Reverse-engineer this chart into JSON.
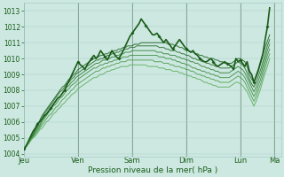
{
  "xlabel": "Pression niveau de la mer( hPa )",
  "ylim": [
    1003.8,
    1013.5
  ],
  "xlim": [
    0,
    114
  ],
  "background_color": "#cce8e0",
  "grid_color_major": "#aacccc",
  "grid_color_minor": "#bbdddd",
  "text_color": "#1a5c1a",
  "day_labels": [
    "Jeu",
    "Ven",
    "Sam",
    "Dim",
    "Lun",
    "Ma"
  ],
  "day_positions": [
    0,
    24,
    48,
    72,
    96,
    111
  ],
  "yticks": [
    1004,
    1005,
    1006,
    1007,
    1008,
    1009,
    1010,
    1011,
    1012,
    1013
  ],
  "obs_color": "#1a5c1a",
  "forecast_colors": [
    "#1a5c1a",
    "#246824",
    "#2e7d2e",
    "#3a8a3a",
    "#4a9a4a",
    "#5aaa5a",
    "#6aba6a"
  ],
  "obs_line": [
    1004.3,
    1004.5,
    1004.8,
    1005.1,
    1005.4,
    1005.6,
    1005.9,
    1006.0,
    1006.2,
    1006.4,
    1006.5,
    1006.7,
    1006.9,
    1007.1,
    1007.3,
    1007.5,
    1007.6,
    1007.8,
    1008.0,
    1008.3,
    1008.6,
    1008.9,
    1009.2,
    1009.5,
    1009.8,
    1009.6,
    1009.5,
    1009.3,
    1009.6,
    1009.8,
    1010.0,
    1010.2,
    1010.0,
    1010.2,
    1010.5,
    1010.3,
    1010.1,
    1009.9,
    1010.2,
    1010.5,
    1010.3,
    1010.1,
    1010.0,
    1010.2,
    1010.5,
    1010.8,
    1011.1,
    1011.4,
    1011.6,
    1011.8,
    1012.0,
    1012.2,
    1012.5,
    1012.3,
    1012.1,
    1011.9,
    1011.7,
    1011.5,
    1011.5,
    1011.6,
    1011.4,
    1011.2,
    1011.0,
    1011.2,
    1011.0,
    1010.8,
    1010.6,
    1010.8,
    1011.0,
    1011.2,
    1011.0,
    1010.8,
    1010.6,
    1010.5,
    1010.4,
    1010.5,
    1010.3,
    1010.2,
    1010.0,
    1009.9,
    1009.8,
    1009.8,
    1009.9,
    1010.0,
    1009.8,
    1009.6,
    1009.5,
    1009.6,
    1009.7,
    1009.8,
    1009.7,
    1009.6,
    1009.5,
    1009.3,
    1010.0,
    1009.8,
    1009.9,
    1009.7,
    1009.5,
    1009.8,
    1009.2,
    1009.0,
    1008.5,
    1008.9,
    1009.3,
    1009.8,
    1010.3,
    1011.2,
    1012.0,
    1013.2
  ],
  "forecast_lines": [
    [
      1004.3,
      1004.5,
      1004.7,
      1005.0,
      1005.2,
      1005.5,
      1005.8,
      1006.1,
      1006.4,
      1006.6,
      1006.8,
      1007.0,
      1007.2,
      1007.4,
      1007.6,
      1007.8,
      1008.0,
      1008.2,
      1008.3,
      1008.5,
      1008.7,
      1008.8,
      1009.0,
      1009.1,
      1009.3,
      1009.4,
      1009.5,
      1009.6,
      1009.7,
      1009.8,
      1009.9,
      1010.0,
      1010.0,
      1010.1,
      1010.2,
      1010.2,
      1010.3,
      1010.3,
      1010.4,
      1010.4,
      1010.5,
      1010.5,
      1010.6,
      1010.6,
      1010.7,
      1010.7,
      1010.8,
      1010.8,
      1010.8,
      1010.9,
      1010.9,
      1010.9,
      1011.0,
      1011.0,
      1011.0,
      1011.0,
      1011.0,
      1011.0,
      1011.0,
      1011.0,
      1011.0,
      1011.0,
      1011.0,
      1011.0,
      1010.9,
      1010.9,
      1010.9,
      1010.8,
      1010.8,
      1010.7,
      1010.7,
      1010.6,
      1010.5,
      1010.5,
      1010.4,
      1010.4,
      1010.3,
      1010.3,
      1010.2,
      1010.2,
      1010.1,
      1010.1,
      1010.0,
      1010.0,
      1010.0,
      1009.9,
      1009.9,
      1009.8,
      1009.8,
      1009.7,
      1009.7,
      1009.7,
      1009.7,
      1009.8,
      1009.9,
      1010.0,
      1010.0,
      1009.9,
      1009.8,
      1009.5,
      1009.0,
      1008.7,
      1008.5,
      1008.8,
      1009.2,
      1009.7,
      1010.2,
      1010.7,
      1011.1,
      1011.5
    ],
    [
      1004.3,
      1004.5,
      1004.7,
      1005.0,
      1005.2,
      1005.5,
      1005.7,
      1006.0,
      1006.2,
      1006.5,
      1006.7,
      1006.9,
      1007.1,
      1007.3,
      1007.5,
      1007.7,
      1007.9,
      1008.0,
      1008.2,
      1008.4,
      1008.5,
      1008.7,
      1008.8,
      1009.0,
      1009.1,
      1009.2,
      1009.3,
      1009.4,
      1009.5,
      1009.6,
      1009.7,
      1009.8,
      1009.9,
      1009.9,
      1010.0,
      1010.0,
      1010.1,
      1010.2,
      1010.2,
      1010.3,
      1010.3,
      1010.4,
      1010.4,
      1010.5,
      1010.5,
      1010.6,
      1010.6,
      1010.7,
      1010.7,
      1010.7,
      1010.8,
      1010.8,
      1010.8,
      1010.8,
      1010.8,
      1010.8,
      1010.8,
      1010.8,
      1010.8,
      1010.8,
      1010.7,
      1010.7,
      1010.7,
      1010.6,
      1010.6,
      1010.5,
      1010.5,
      1010.5,
      1010.4,
      1010.4,
      1010.3,
      1010.3,
      1010.2,
      1010.2,
      1010.1,
      1010.0,
      1010.0,
      1009.9,
      1009.9,
      1009.8,
      1009.8,
      1009.7,
      1009.7,
      1009.6,
      1009.6,
      1009.5,
      1009.5,
      1009.4,
      1009.4,
      1009.4,
      1009.4,
      1009.4,
      1009.5,
      1009.6,
      1009.7,
      1009.8,
      1009.7,
      1009.6,
      1009.4,
      1009.1,
      1008.7,
      1008.4,
      1008.2,
      1008.5,
      1008.9,
      1009.3,
      1009.8,
      1010.3,
      1010.8,
      1011.2
    ],
    [
      1004.3,
      1004.5,
      1004.7,
      1004.9,
      1005.1,
      1005.4,
      1005.6,
      1005.8,
      1006.1,
      1006.3,
      1006.5,
      1006.7,
      1006.9,
      1007.1,
      1007.3,
      1007.5,
      1007.6,
      1007.8,
      1008.0,
      1008.2,
      1008.3,
      1008.5,
      1008.6,
      1008.8,
      1008.9,
      1009.0,
      1009.1,
      1009.2,
      1009.3,
      1009.4,
      1009.5,
      1009.6,
      1009.7,
      1009.7,
      1009.8,
      1009.9,
      1009.9,
      1010.0,
      1010.0,
      1010.1,
      1010.1,
      1010.2,
      1010.2,
      1010.3,
      1010.3,
      1010.4,
      1010.4,
      1010.4,
      1010.5,
      1010.5,
      1010.5,
      1010.5,
      1010.5,
      1010.5,
      1010.5,
      1010.5,
      1010.5,
      1010.5,
      1010.5,
      1010.4,
      1010.4,
      1010.4,
      1010.3,
      1010.3,
      1010.3,
      1010.2,
      1010.2,
      1010.2,
      1010.1,
      1010.1,
      1010.0,
      1010.0,
      1009.9,
      1009.9,
      1009.8,
      1009.8,
      1009.7,
      1009.7,
      1009.6,
      1009.5,
      1009.5,
      1009.4,
      1009.4,
      1009.3,
      1009.3,
      1009.2,
      1009.2,
      1009.1,
      1009.1,
      1009.1,
      1009.1,
      1009.1,
      1009.2,
      1009.3,
      1009.4,
      1009.5,
      1009.4,
      1009.3,
      1009.1,
      1008.8,
      1008.5,
      1008.2,
      1007.9,
      1008.2,
      1008.6,
      1009.0,
      1009.5,
      1010.0,
      1010.5,
      1010.9
    ],
    [
      1004.3,
      1004.5,
      1004.7,
      1004.9,
      1005.1,
      1005.3,
      1005.5,
      1005.7,
      1006.0,
      1006.2,
      1006.4,
      1006.6,
      1006.8,
      1007.0,
      1007.1,
      1007.3,
      1007.5,
      1007.6,
      1007.8,
      1008.0,
      1008.1,
      1008.3,
      1008.4,
      1008.5,
      1008.7,
      1008.8,
      1008.9,
      1009.0,
      1009.1,
      1009.2,
      1009.3,
      1009.4,
      1009.4,
      1009.5,
      1009.6,
      1009.6,
      1009.7,
      1009.7,
      1009.8,
      1009.8,
      1009.9,
      1009.9,
      1010.0,
      1010.0,
      1010.1,
      1010.1,
      1010.1,
      1010.2,
      1010.2,
      1010.2,
      1010.2,
      1010.2,
      1010.2,
      1010.2,
      1010.2,
      1010.2,
      1010.2,
      1010.2,
      1010.2,
      1010.2,
      1010.1,
      1010.1,
      1010.1,
      1010.0,
      1010.0,
      1010.0,
      1009.9,
      1009.9,
      1009.8,
      1009.8,
      1009.7,
      1009.7,
      1009.6,
      1009.6,
      1009.5,
      1009.4,
      1009.4,
      1009.3,
      1009.3,
      1009.2,
      1009.2,
      1009.1,
      1009.1,
      1009.0,
      1009.0,
      1008.9,
      1008.9,
      1008.8,
      1008.8,
      1008.8,
      1008.8,
      1008.8,
      1008.9,
      1009.0,
      1009.1,
      1009.2,
      1009.1,
      1009.0,
      1008.8,
      1008.5,
      1008.2,
      1007.9,
      1007.6,
      1007.9,
      1008.3,
      1008.7,
      1009.2,
      1009.7,
      1010.2,
      1010.6
    ],
    [
      1004.3,
      1004.5,
      1004.7,
      1004.9,
      1005.0,
      1005.2,
      1005.4,
      1005.6,
      1005.8,
      1006.0,
      1006.2,
      1006.4,
      1006.5,
      1006.7,
      1006.9,
      1007.0,
      1007.2,
      1007.4,
      1007.5,
      1007.7,
      1007.8,
      1008.0,
      1008.1,
      1008.3,
      1008.4,
      1008.5,
      1008.6,
      1008.7,
      1008.8,
      1008.9,
      1009.0,
      1009.1,
      1009.2,
      1009.2,
      1009.3,
      1009.4,
      1009.4,
      1009.5,
      1009.5,
      1009.6,
      1009.6,
      1009.7,
      1009.7,
      1009.8,
      1009.8,
      1009.8,
      1009.9,
      1009.9,
      1009.9,
      1009.9,
      1009.9,
      1009.9,
      1009.9,
      1009.9,
      1009.9,
      1009.9,
      1009.9,
      1009.9,
      1009.8,
      1009.8,
      1009.8,
      1009.8,
      1009.7,
      1009.7,
      1009.7,
      1009.6,
      1009.6,
      1009.5,
      1009.5,
      1009.5,
      1009.4,
      1009.4,
      1009.3,
      1009.3,
      1009.2,
      1009.2,
      1009.1,
      1009.0,
      1009.0,
      1008.9,
      1008.9,
      1008.8,
      1008.8,
      1008.7,
      1008.7,
      1008.6,
      1008.6,
      1008.5,
      1008.5,
      1008.5,
      1008.5,
      1008.5,
      1008.6,
      1008.7,
      1008.8,
      1008.9,
      1008.8,
      1008.7,
      1008.5,
      1008.2,
      1007.9,
      1007.6,
      1007.3,
      1007.6,
      1008.0,
      1008.4,
      1008.9,
      1009.4,
      1009.9,
      1010.3
    ],
    [
      1004.3,
      1004.4,
      1004.6,
      1004.8,
      1005.0,
      1005.1,
      1005.3,
      1005.5,
      1005.6,
      1005.8,
      1006.0,
      1006.1,
      1006.3,
      1006.5,
      1006.6,
      1006.8,
      1006.9,
      1007.1,
      1007.2,
      1007.4,
      1007.5,
      1007.7,
      1007.8,
      1007.9,
      1008.1,
      1008.2,
      1008.3,
      1008.4,
      1008.5,
      1008.6,
      1008.7,
      1008.8,
      1008.8,
      1008.9,
      1009.0,
      1009.0,
      1009.1,
      1009.2,
      1009.2,
      1009.3,
      1009.3,
      1009.4,
      1009.4,
      1009.5,
      1009.5,
      1009.5,
      1009.5,
      1009.6,
      1009.6,
      1009.6,
      1009.6,
      1009.6,
      1009.6,
      1009.6,
      1009.6,
      1009.5,
      1009.5,
      1009.5,
      1009.5,
      1009.5,
      1009.4,
      1009.4,
      1009.4,
      1009.3,
      1009.3,
      1009.3,
      1009.2,
      1009.2,
      1009.2,
      1009.1,
      1009.1,
      1009.0,
      1009.0,
      1008.9,
      1008.9,
      1008.8,
      1008.8,
      1008.7,
      1008.7,
      1008.6,
      1008.5,
      1008.5,
      1008.4,
      1008.4,
      1008.3,
      1008.3,
      1008.2,
      1008.2,
      1008.2,
      1008.2,
      1008.2,
      1008.2,
      1008.3,
      1008.4,
      1008.5,
      1008.5,
      1008.4,
      1008.3,
      1008.1,
      1007.9,
      1007.6,
      1007.3,
      1007.0,
      1007.3,
      1007.7,
      1008.1,
      1008.6,
      1009.1,
      1009.5,
      1010.0
    ]
  ]
}
